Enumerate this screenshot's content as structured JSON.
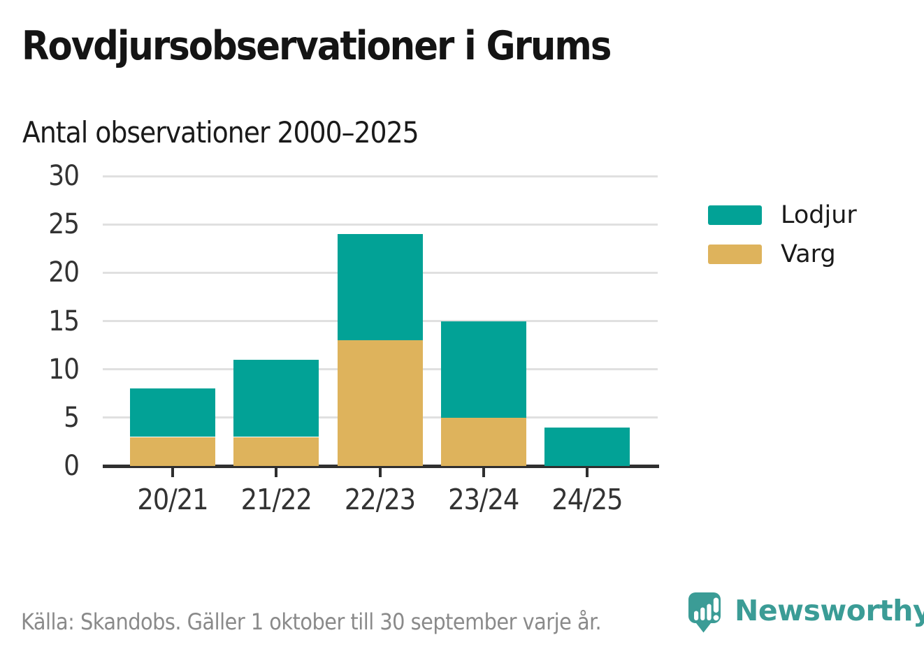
{
  "header": {
    "title": "Rovdjursobservationer i Grums",
    "subtitle": "Antal observationer 2000–2025"
  },
  "chart_data": {
    "type": "bar",
    "stacked": true,
    "title": "Rovdjursobservationer i Grums",
    "subtitle": "Antal observationer 2000–2025",
    "categories": [
      "20/21",
      "21/22",
      "22/23",
      "23/24",
      "24/25"
    ],
    "series": [
      {
        "name": "Varg",
        "color": "#deb35c",
        "values": [
          3,
          3,
          13,
          5,
          0
        ]
      },
      {
        "name": "Lodjur",
        "color": "#02a296",
        "values": [
          5,
          8,
          11,
          10,
          4
        ]
      }
    ],
    "totals": [
      8,
      11,
      24,
      15,
      4
    ],
    "xlabel": "",
    "ylabel": "",
    "ylim": [
      0,
      30
    ],
    "yticks": [
      0,
      5,
      10,
      15,
      20,
      25,
      30
    ],
    "grid": true,
    "legend_position": "right",
    "legend_order": [
      "Lodjur",
      "Varg"
    ]
  },
  "colors": {
    "lodjur": "#02a296",
    "varg": "#deb35c",
    "axis": "#2f2f2f",
    "gridline": "#e0e0e0",
    "tick_label": "#333333",
    "brand_teal": "#3b9c96",
    "source_gray": "#8a8a8a"
  },
  "footer": {
    "source": "Källa: Skandobs. Gäller 1 oktober till 30 september varje år.",
    "brand_name": "Newsworthy"
  }
}
